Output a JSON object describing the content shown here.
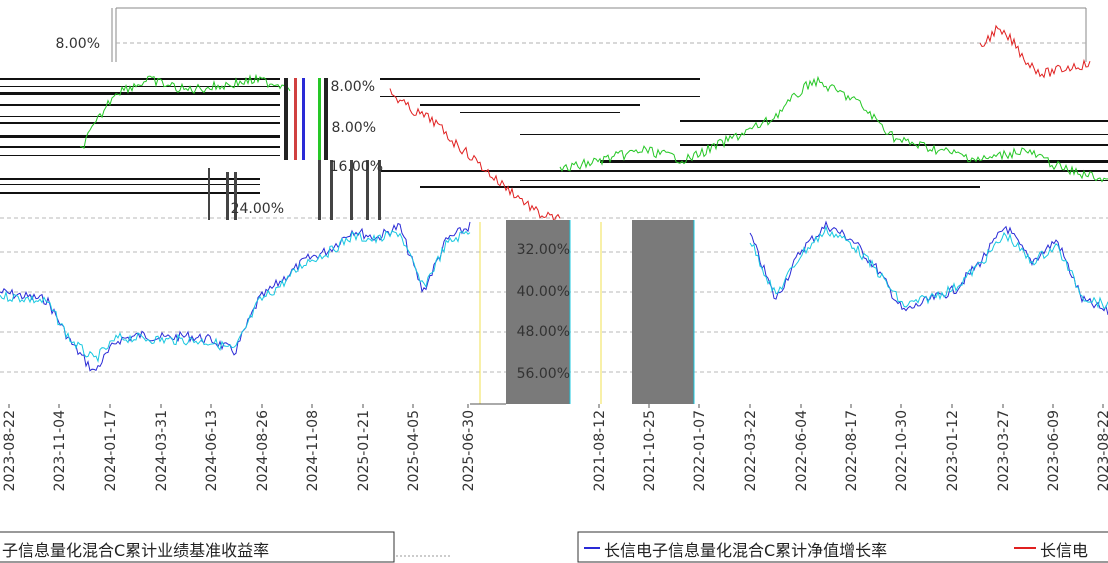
{
  "chart_data": {
    "type": "line",
    "title": "",
    "xlabel": "",
    "ylabel": "",
    "grid": true,
    "legend_position": "bottom",
    "colors": {
      "series_a": "#2a2ad6",
      "series_b": "#e02020",
      "series_c": "#26c726",
      "bench": "#18c8e0"
    },
    "y_ticks": [
      "8.00%",
      "8.00%",
      "8.00%",
      "16.00%",
      "24.00%",
      "32.00%",
      "40.00%",
      "48.00%",
      "56.00%"
    ],
    "x_ticks_left": [
      "2023-08-22",
      "2023-11-04",
      "2024-01-17",
      "2024-03-31",
      "2024-06-13",
      "2024-08-26",
      "2024-11-08",
      "2025-01-21",
      "2025-04-05",
      "2025-06-30"
    ],
    "x_ticks_right": [
      "2021-08-12",
      "2021-10-25",
      "2022-01-07",
      "2022-03-22",
      "2022-06-04",
      "2022-08-17",
      "2022-10-30",
      "2023-01-12",
      "2023-03-27",
      "2023-06-09",
      "2023-08-22"
    ],
    "legend_left": [
      "子信息量化混合C累计业绩基准收益率"
    ],
    "legend_right": [
      "长信电子信息量化混合C累计净值增长率",
      "长信电"
    ]
  }
}
